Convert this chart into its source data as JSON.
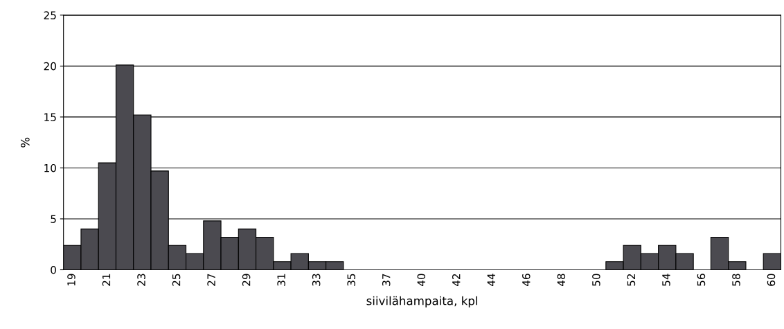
{
  "chart_data": {
    "type": "bar",
    "xlabel": "siivilähampaita, kpl",
    "ylabel": "%",
    "categories": [
      "19",
      null,
      "21",
      null,
      "23",
      null,
      "25",
      null,
      "27",
      null,
      "29",
      null,
      "31",
      null,
      "33",
      null,
      "35",
      null,
      "37",
      null,
      "40",
      null,
      "42",
      null,
      "44",
      null,
      "46",
      null,
      "48",
      null,
      "50",
      null,
      "52",
      null,
      "54",
      null,
      "56",
      null,
      "58",
      null,
      "60"
    ],
    "values": [
      2.4,
      4.0,
      10.5,
      20.1,
      15.2,
      9.7,
      2.4,
      1.6,
      4.8,
      3.2,
      4.0,
      3.2,
      0.8,
      1.6,
      0.8,
      0.8,
      0,
      0,
      0,
      0,
      0,
      0,
      0,
      0,
      0,
      0,
      0,
      0,
      0,
      0,
      0,
      0.8,
      2.4,
      1.6,
      2.4,
      1.6,
      0,
      3.2,
      0.8,
      0,
      1.6
    ],
    "color": "#4b4a50",
    "ylim": [
      0,
      25
    ],
    "yticks": [
      0,
      5,
      10,
      15,
      20,
      25
    ],
    "grid": "y"
  }
}
